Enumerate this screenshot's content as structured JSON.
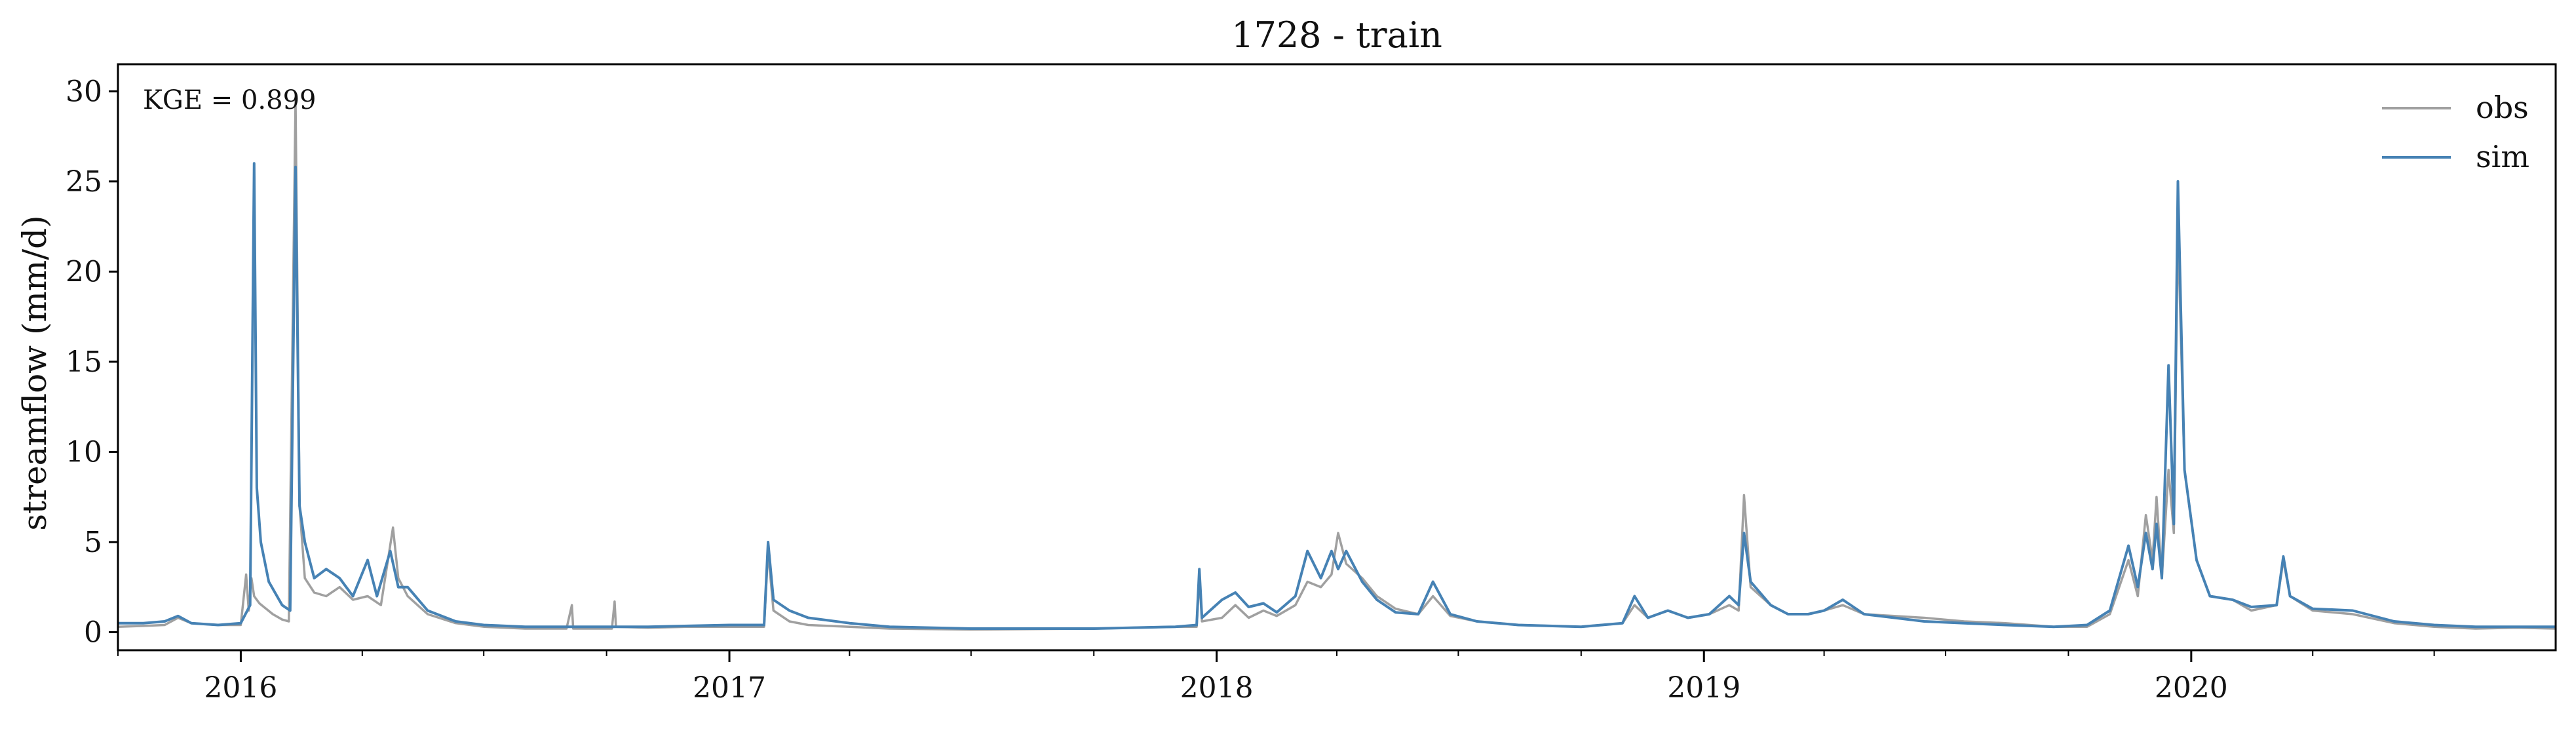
{
  "chart_data": {
    "type": "line",
    "title": "1728 - train",
    "xlabel": "",
    "ylabel": "streamflow (mm/d)",
    "annotation": "KGE = 0.899",
    "xlim": [
      "2015-10-01",
      "2020-09-30"
    ],
    "ylim": [
      -1,
      31.5
    ],
    "x_ticks": [
      "2016-01-01",
      "2017-01-01",
      "2018-01-01",
      "2019-01-01",
      "2020-01-01"
    ],
    "x_tick_labels": [
      "2016",
      "2017",
      "2018",
      "2019",
      "2020"
    ],
    "y_ticks": [
      0,
      5,
      10,
      15,
      20,
      25,
      30
    ],
    "y_tick_labels": [
      "0",
      "5",
      "10",
      "15",
      "20",
      "25",
      "30"
    ],
    "grid": false,
    "legend_position": "top-right",
    "series": [
      {
        "name": "obs",
        "color": "#a0a0a0",
        "points": [
          [
            "2015-10-01",
            0.3
          ],
          [
            "2015-10-20",
            0.35
          ],
          [
            "2015-11-05",
            0.4
          ],
          [
            "2015-11-15",
            0.8
          ],
          [
            "2015-11-25",
            0.5
          ],
          [
            "2015-12-15",
            0.4
          ],
          [
            "2016-01-01",
            0.4
          ],
          [
            "2016-01-05",
            3.2
          ],
          [
            "2016-01-07",
            1.2
          ],
          [
            "2016-01-09",
            3.0
          ],
          [
            "2016-01-11",
            2.0
          ],
          [
            "2016-01-15",
            1.6
          ],
          [
            "2016-01-25",
            1.0
          ],
          [
            "2016-02-01",
            0.7
          ],
          [
            "2016-02-06",
            0.6
          ],
          [
            "2016-02-11",
            29.5
          ],
          [
            "2016-02-14",
            7.0
          ],
          [
            "2016-02-18",
            3.0
          ],
          [
            "2016-02-25",
            2.2
          ],
          [
            "2016-03-05",
            2.0
          ],
          [
            "2016-03-15",
            2.5
          ],
          [
            "2016-03-25",
            1.8
          ],
          [
            "2016-04-05",
            2.0
          ],
          [
            "2016-04-15",
            1.5
          ],
          [
            "2016-04-24",
            5.8
          ],
          [
            "2016-04-28",
            3.0
          ],
          [
            "2016-05-05",
            2.0
          ],
          [
            "2016-05-20",
            1.0
          ],
          [
            "2016-06-10",
            0.5
          ],
          [
            "2016-07-01",
            0.3
          ],
          [
            "2016-08-01",
            0.2
          ],
          [
            "2016-09-01",
            0.2
          ],
          [
            "2016-09-05",
            1.5
          ],
          [
            "2016-09-06",
            0.2
          ],
          [
            "2016-10-05",
            0.2
          ],
          [
            "2016-10-07",
            1.7
          ],
          [
            "2016-10-08",
            0.3
          ],
          [
            "2016-11-01",
            0.25
          ],
          [
            "2016-12-01",
            0.3
          ],
          [
            "2017-01-01",
            0.3
          ],
          [
            "2017-01-27",
            0.3
          ],
          [
            "2017-01-30",
            4.5
          ],
          [
            "2017-02-03",
            1.2
          ],
          [
            "2017-02-15",
            0.6
          ],
          [
            "2017-03-01",
            0.4
          ],
          [
            "2017-04-01",
            0.3
          ],
          [
            "2017-05-01",
            0.2
          ],
          [
            "2017-07-01",
            0.15
          ],
          [
            "2017-10-01",
            0.2
          ],
          [
            "2017-12-01",
            0.3
          ],
          [
            "2017-12-17",
            0.3
          ],
          [
            "2017-12-19",
            3.0
          ],
          [
            "2017-12-21",
            0.6
          ],
          [
            "2018-01-05",
            0.8
          ],
          [
            "2018-01-15",
            1.5
          ],
          [
            "2018-01-25",
            0.8
          ],
          [
            "2018-02-05",
            1.2
          ],
          [
            "2018-02-15",
            0.9
          ],
          [
            "2018-03-01",
            1.5
          ],
          [
            "2018-03-10",
            2.8
          ],
          [
            "2018-03-20",
            2.5
          ],
          [
            "2018-03-28",
            3.2
          ],
          [
            "2018-04-02",
            5.5
          ],
          [
            "2018-04-08",
            3.8
          ],
          [
            "2018-04-20",
            3.0
          ],
          [
            "2018-05-01",
            2.0
          ],
          [
            "2018-05-15",
            1.3
          ],
          [
            "2018-06-01",
            1.0
          ],
          [
            "2018-06-12",
            2.0
          ],
          [
            "2018-06-25",
            0.9
          ],
          [
            "2018-07-15",
            0.6
          ],
          [
            "2018-08-15",
            0.4
          ],
          [
            "2018-10-01",
            0.3
          ],
          [
            "2018-11-01",
            0.5
          ],
          [
            "2018-11-10",
            1.5
          ],
          [
            "2018-11-20",
            0.8
          ],
          [
            "2018-12-05",
            1.2
          ],
          [
            "2018-12-20",
            0.8
          ],
          [
            "2019-01-05",
            1.0
          ],
          [
            "2019-01-20",
            1.5
          ],
          [
            "2019-01-27",
            1.2
          ],
          [
            "2019-01-31",
            7.6
          ],
          [
            "2019-02-05",
            2.5
          ],
          [
            "2019-02-20",
            1.5
          ],
          [
            "2019-03-05",
            1.0
          ],
          [
            "2019-03-20",
            1.0
          ],
          [
            "2019-04-01",
            1.2
          ],
          [
            "2019-04-15",
            1.5
          ],
          [
            "2019-05-01",
            1.0
          ],
          [
            "2019-06-15",
            0.8
          ],
          [
            "2019-07-15",
            0.6
          ],
          [
            "2019-08-15",
            0.5
          ],
          [
            "2019-09-20",
            0.3
          ],
          [
            "2019-10-15",
            0.3
          ],
          [
            "2019-11-01",
            1.0
          ],
          [
            "2019-11-15",
            4.0
          ],
          [
            "2019-11-22",
            2.0
          ],
          [
            "2019-11-28",
            6.5
          ],
          [
            "2019-12-03",
            4.0
          ],
          [
            "2019-12-06",
            7.5
          ],
          [
            "2019-12-10",
            3.0
          ],
          [
            "2019-12-15",
            9.0
          ],
          [
            "2019-12-19",
            5.5
          ],
          [
            "2019-12-22",
            22.5
          ],
          [
            "2019-12-27",
            9.0
          ],
          [
            "2020-01-05",
            4.0
          ],
          [
            "2020-01-15",
            2.0
          ],
          [
            "2020-02-01",
            1.8
          ],
          [
            "2020-02-15",
            1.2
          ],
          [
            "2020-03-05",
            1.5
          ],
          [
            "2020-03-10",
            4.0
          ],
          [
            "2020-03-15",
            2.0
          ],
          [
            "2020-04-01",
            1.2
          ],
          [
            "2020-05-01",
            1.0
          ],
          [
            "2020-06-01",
            0.5
          ],
          [
            "2020-07-01",
            0.3
          ],
          [
            "2020-08-01",
            0.2
          ],
          [
            "2020-09-01",
            0.25
          ],
          [
            "2020-09-30",
            0.2
          ]
        ]
      },
      {
        "name": "sim",
        "color": "#4682b4",
        "points": [
          [
            "2015-10-01",
            0.5
          ],
          [
            "2015-10-20",
            0.5
          ],
          [
            "2015-11-05",
            0.6
          ],
          [
            "2015-11-15",
            0.9
          ],
          [
            "2015-11-25",
            0.5
          ],
          [
            "2015-12-15",
            0.4
          ],
          [
            "2016-01-01",
            0.5
          ],
          [
            "2016-01-08",
            1.5
          ],
          [
            "2016-01-11",
            26.0
          ],
          [
            "2016-01-13",
            8.0
          ],
          [
            "2016-01-16",
            5.0
          ],
          [
            "2016-01-22",
            2.8
          ],
          [
            "2016-02-01",
            1.5
          ],
          [
            "2016-02-07",
            1.2
          ],
          [
            "2016-02-11",
            25.8
          ],
          [
            "2016-02-14",
            7.0
          ],
          [
            "2016-02-18",
            5.0
          ],
          [
            "2016-02-25",
            3.0
          ],
          [
            "2016-03-05",
            3.5
          ],
          [
            "2016-03-15",
            3.0
          ],
          [
            "2016-03-25",
            2.0
          ],
          [
            "2016-04-05",
            4.0
          ],
          [
            "2016-04-12",
            2.0
          ],
          [
            "2016-04-22",
            4.5
          ],
          [
            "2016-04-28",
            2.5
          ],
          [
            "2016-05-05",
            2.5
          ],
          [
            "2016-05-20",
            1.2
          ],
          [
            "2016-06-10",
            0.6
          ],
          [
            "2016-07-01",
            0.4
          ],
          [
            "2016-08-01",
            0.3
          ],
          [
            "2016-09-01",
            0.3
          ],
          [
            "2016-10-01",
            0.3
          ],
          [
            "2016-11-01",
            0.3
          ],
          [
            "2016-12-01",
            0.35
          ],
          [
            "2017-01-01",
            0.4
          ],
          [
            "2017-01-27",
            0.4
          ],
          [
            "2017-01-30",
            5.0
          ],
          [
            "2017-02-03",
            1.8
          ],
          [
            "2017-02-15",
            1.2
          ],
          [
            "2017-03-01",
            0.8
          ],
          [
            "2017-04-01",
            0.5
          ],
          [
            "2017-05-01",
            0.3
          ],
          [
            "2017-07-01",
            0.2
          ],
          [
            "2017-10-01",
            0.2
          ],
          [
            "2017-12-01",
            0.3
          ],
          [
            "2017-12-17",
            0.4
          ],
          [
            "2017-12-19",
            3.5
          ],
          [
            "2017-12-21",
            0.8
          ],
          [
            "2018-01-05",
            1.8
          ],
          [
            "2018-01-15",
            2.2
          ],
          [
            "2018-01-25",
            1.4
          ],
          [
            "2018-02-05",
            1.6
          ],
          [
            "2018-02-15",
            1.1
          ],
          [
            "2018-03-01",
            2.0
          ],
          [
            "2018-03-10",
            4.5
          ],
          [
            "2018-03-20",
            3.0
          ],
          [
            "2018-03-28",
            4.5
          ],
          [
            "2018-04-02",
            3.5
          ],
          [
            "2018-04-08",
            4.5
          ],
          [
            "2018-04-20",
            2.8
          ],
          [
            "2018-05-01",
            1.8
          ],
          [
            "2018-05-15",
            1.1
          ],
          [
            "2018-06-01",
            1.0
          ],
          [
            "2018-06-12",
            2.8
          ],
          [
            "2018-06-25",
            1.0
          ],
          [
            "2018-07-15",
            0.6
          ],
          [
            "2018-08-15",
            0.4
          ],
          [
            "2018-10-01",
            0.3
          ],
          [
            "2018-11-01",
            0.5
          ],
          [
            "2018-11-10",
            2.0
          ],
          [
            "2018-11-20",
            0.8
          ],
          [
            "2018-12-05",
            1.2
          ],
          [
            "2018-12-20",
            0.8
          ],
          [
            "2019-01-05",
            1.0
          ],
          [
            "2019-01-20",
            2.0
          ],
          [
            "2019-01-27",
            1.5
          ],
          [
            "2019-01-31",
            5.5
          ],
          [
            "2019-02-05",
            2.8
          ],
          [
            "2019-02-20",
            1.5
          ],
          [
            "2019-03-05",
            1.0
          ],
          [
            "2019-03-20",
            1.0
          ],
          [
            "2019-04-01",
            1.2
          ],
          [
            "2019-04-15",
            1.8
          ],
          [
            "2019-05-01",
            1.0
          ],
          [
            "2019-06-15",
            0.6
          ],
          [
            "2019-07-15",
            0.5
          ],
          [
            "2019-08-15",
            0.4
          ],
          [
            "2019-09-20",
            0.3
          ],
          [
            "2019-10-15",
            0.4
          ],
          [
            "2019-11-01",
            1.2
          ],
          [
            "2019-11-15",
            4.8
          ],
          [
            "2019-11-22",
            2.5
          ],
          [
            "2019-11-28",
            5.5
          ],
          [
            "2019-12-03",
            3.5
          ],
          [
            "2019-12-06",
            6.0
          ],
          [
            "2019-12-10",
            3.0
          ],
          [
            "2019-12-15",
            14.8
          ],
          [
            "2019-12-19",
            6.0
          ],
          [
            "2019-12-22",
            25.0
          ],
          [
            "2019-12-27",
            9.0
          ],
          [
            "2020-01-05",
            4.0
          ],
          [
            "2020-01-15",
            2.0
          ],
          [
            "2020-02-01",
            1.8
          ],
          [
            "2020-02-15",
            1.4
          ],
          [
            "2020-03-05",
            1.5
          ],
          [
            "2020-03-10",
            4.2
          ],
          [
            "2020-03-15",
            2.0
          ],
          [
            "2020-04-01",
            1.3
          ],
          [
            "2020-05-01",
            1.2
          ],
          [
            "2020-06-01",
            0.6
          ],
          [
            "2020-07-01",
            0.4
          ],
          [
            "2020-08-01",
            0.3
          ],
          [
            "2020-09-01",
            0.3
          ],
          [
            "2020-09-30",
            0.3
          ]
        ]
      }
    ]
  }
}
